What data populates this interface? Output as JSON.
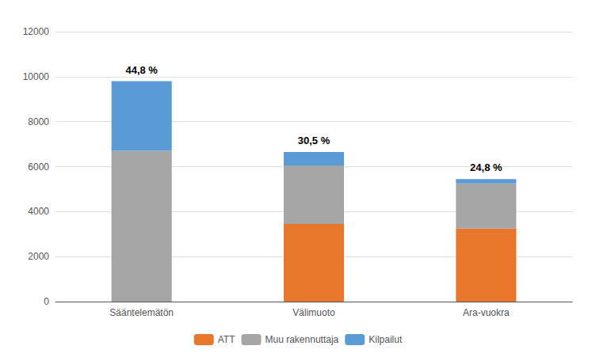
{
  "chart_data": {
    "type": "bar",
    "stacked": true,
    "categories": [
      "Sääntelemätön",
      "Välimuoto",
      "Ara-vuokra"
    ],
    "series": [
      {
        "name": "ATT",
        "color": "#E8762B",
        "values": [
          0,
          3450,
          3250
        ]
      },
      {
        "name": "Muu rakennuttaja",
        "color": "#A5A5A5",
        "values": [
          6700,
          2600,
          2000
        ]
      },
      {
        "name": "Kilpailut",
        "color": "#5B9BD5",
        "values": [
          3100,
          600,
          200
        ]
      }
    ],
    "annotations": [
      "44,8 %",
      "30,5 %",
      "24,8 %"
    ],
    "ylim": [
      0,
      12000
    ],
    "yticks": [
      0,
      2000,
      4000,
      6000,
      8000,
      10000,
      12000
    ],
    "grid": true,
    "legend": "bottom"
  }
}
